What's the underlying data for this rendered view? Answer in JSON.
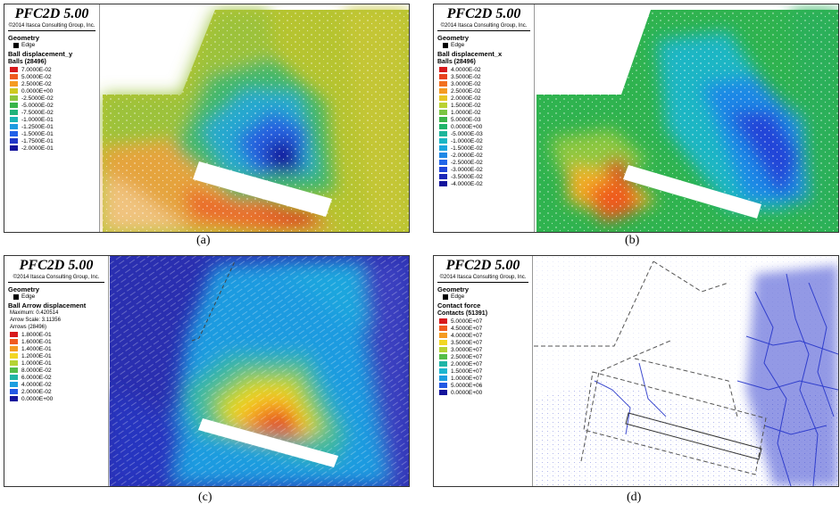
{
  "panels": [
    {
      "id": "a",
      "caption": "(a)",
      "title": "PFC2D 5.00",
      "copyright": "©2014 Itasca Consulting Group, Inc.",
      "geometry_label": "Geometry",
      "edge_label": "Edge",
      "quantity": "Ball displacement_y",
      "entity": "Balls (28496)",
      "legend": [
        {
          "label": "7.0000E-02",
          "color": "#d7191c"
        },
        {
          "label": "5.0000E-02",
          "color": "#ef5a1e"
        },
        {
          "label": "2.5000E-02",
          "color": "#f59b21"
        },
        {
          "label": "0.0000E+00",
          "color": "#cfc91f"
        },
        {
          "label": "-2.5000E-02",
          "color": "#8ec63f"
        },
        {
          "label": "-5.0000E-02",
          "color": "#38b54a"
        },
        {
          "label": "-7.5000E-02",
          "color": "#1fb37a"
        },
        {
          "label": "-1.0000E-01",
          "color": "#1bb5b5"
        },
        {
          "label": "-1.2500E-01",
          "color": "#1e9be0"
        },
        {
          "label": "-1.5000E-01",
          "color": "#2160e8"
        },
        {
          "label": "-1.7500E-01",
          "color": "#1f36c8"
        },
        {
          "label": "-2.0000E-01",
          "color": "#14149c"
        }
      ]
    },
    {
      "id": "b",
      "caption": "(b)",
      "title": "PFC2D 5.00",
      "copyright": "©2014 Itasca Consulting Group, Inc.",
      "geometry_label": "Geometry",
      "edge_label": "Edge",
      "quantity": "Ball displacement_x",
      "entity": "Balls (28496)",
      "legend": [
        {
          "label": "4.0000E-02",
          "color": "#d7191c"
        },
        {
          "label": "3.5000E-02",
          "color": "#e8421e"
        },
        {
          "label": "3.0000E-02",
          "color": "#f27020"
        },
        {
          "label": "2.5000E-02",
          "color": "#f59b21"
        },
        {
          "label": "2.0000E-02",
          "color": "#e8c622"
        },
        {
          "label": "1.5000E-02",
          "color": "#b9d232"
        },
        {
          "label": "1.0000E-02",
          "color": "#7bc542"
        },
        {
          "label": "5.0000E-03",
          "color": "#3cb54a"
        },
        {
          "label": "0.0000E+00",
          "color": "#20b46a"
        },
        {
          "label": "-5.0000E-03",
          "color": "#1cb59a"
        },
        {
          "label": "-1.0000E-02",
          "color": "#1ab6c4"
        },
        {
          "label": "-1.5000E-02",
          "color": "#1ca6de"
        },
        {
          "label": "-2.0000E-02",
          "color": "#1f88e6"
        },
        {
          "label": "-2.5000E-02",
          "color": "#2166e8"
        },
        {
          "label": "-3.0000E-02",
          "color": "#2045d8"
        },
        {
          "label": "-3.5000E-02",
          "color": "#1b28b8"
        },
        {
          "label": "-4.0000E-02",
          "color": "#14149c"
        }
      ]
    },
    {
      "id": "c",
      "caption": "(c)",
      "title": "PFC2D 5.00",
      "copyright": "©2014 Itasca Consulting Group, Inc.",
      "geometry_label": "Geometry",
      "edge_label": "Edge",
      "quantity": "Ball Arrow displacement",
      "maximum": "Maximum: 0.420514",
      "arrow_scale": "Arrow Scale: 3.11356",
      "entity": "Arrows (28496)",
      "legend": [
        {
          "label": "1.8000E-01",
          "color": "#d7191c"
        },
        {
          "label": "1.6000E-01",
          "color": "#f05a1f"
        },
        {
          "label": "1.4000E-01",
          "color": "#f59b21"
        },
        {
          "label": "1.2000E-01",
          "color": "#f2d624"
        },
        {
          "label": "1.0000E-01",
          "color": "#b5d334"
        },
        {
          "label": "8.0000E-02",
          "color": "#54bd48"
        },
        {
          "label": "6.0000E-02",
          "color": "#1fb5a6"
        },
        {
          "label": "4.0000E-02",
          "color": "#1c9ee0"
        },
        {
          "label": "2.0000E-02",
          "color": "#2258e4"
        },
        {
          "label": "0.0000E+00",
          "color": "#14149c"
        }
      ]
    },
    {
      "id": "d",
      "caption": "(d)",
      "title": "PFC2D 5.00",
      "copyright": "©2014 Itasca Consulting Group, Inc.",
      "geometry_label": "Geometry",
      "edge_label": "Edge",
      "quantity": "Contact force",
      "entity": "Contacts (51391)",
      "legend": [
        {
          "label": "5.0000E+07",
          "color": "#d7191c"
        },
        {
          "label": "4.5000E+07",
          "color": "#f05a1f"
        },
        {
          "label": "4.0000E+07",
          "color": "#f59b21"
        },
        {
          "label": "3.5000E+07",
          "color": "#f2d624"
        },
        {
          "label": "3.0000E+07",
          "color": "#b5d334"
        },
        {
          "label": "2.5000E+07",
          "color": "#54bd48"
        },
        {
          "label": "2.0000E+07",
          "color": "#1fb5a6"
        },
        {
          "label": "1.5000E+07",
          "color": "#1cb6cf"
        },
        {
          "label": "1.0000E+07",
          "color": "#1c9ee0"
        },
        {
          "label": "5.0000E+06",
          "color": "#2258e4"
        },
        {
          "label": "0.0000E+00",
          "color": "#14149c"
        }
      ]
    }
  ]
}
